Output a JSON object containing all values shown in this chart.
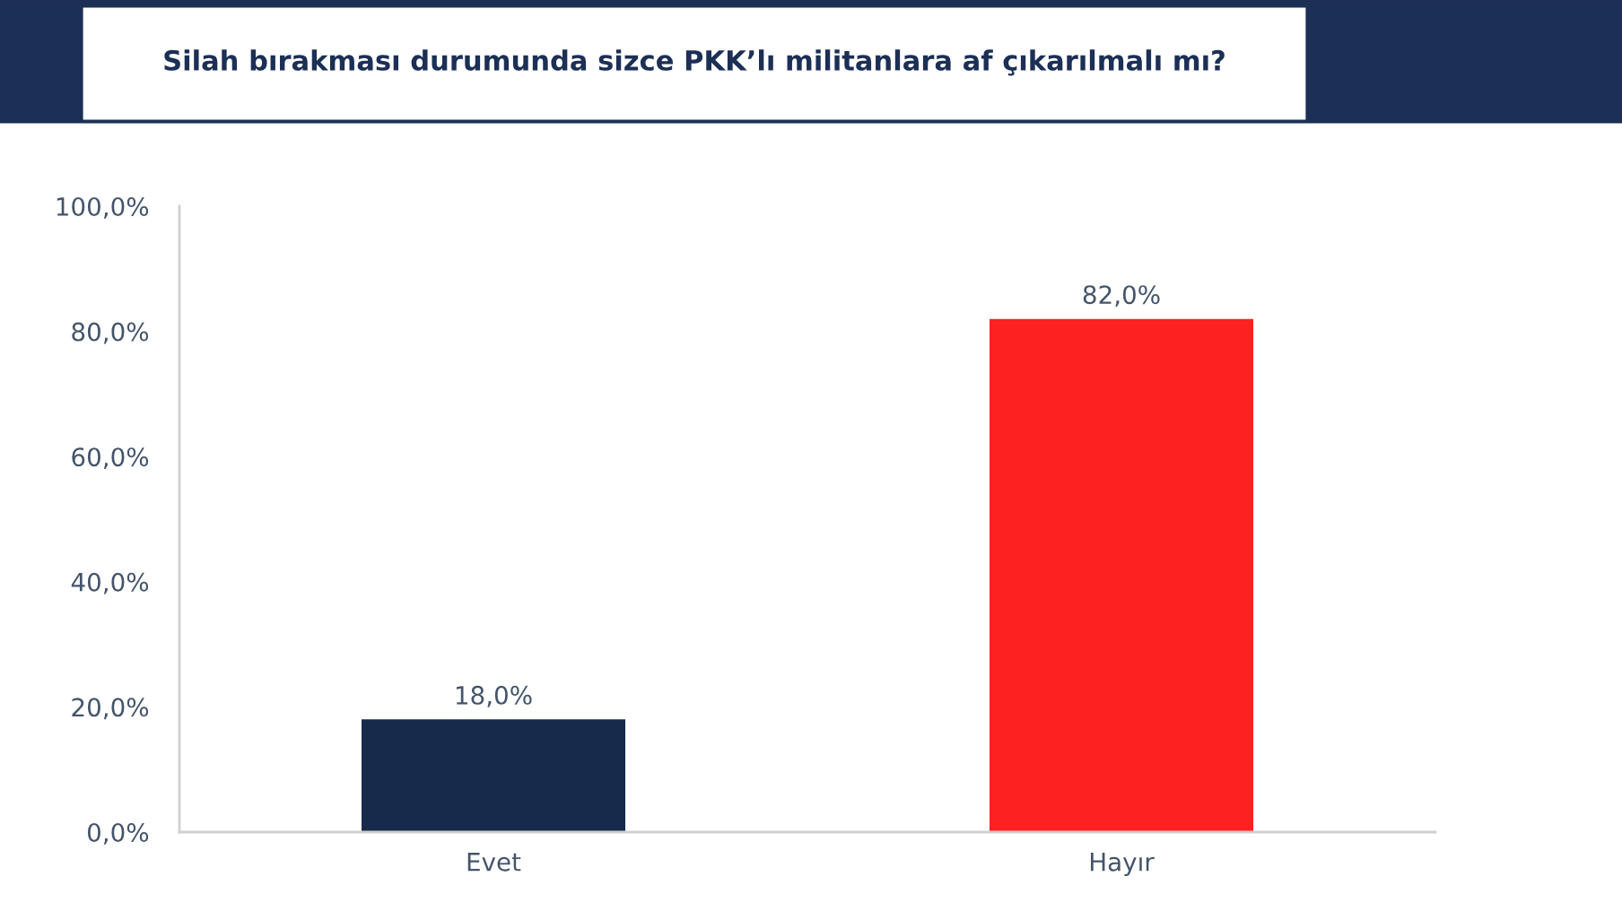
{
  "chart_data": {
    "type": "bar",
    "title": "Silah bırakması durumunda sizce PKK’lı militanlara af çıkarılmalı mı?",
    "categories": [
      "Evet",
      "Hayır"
    ],
    "values": [
      18.0,
      82.0
    ],
    "colors": [
      "#172a4b",
      "#fe2121"
    ],
    "value_labels": [
      "18,0%",
      "82,0%"
    ],
    "ylim": [
      0,
      100
    ],
    "yticks": [
      {
        "value": 0,
        "label": "0,0%"
      },
      {
        "value": 20,
        "label": "20,0%"
      },
      {
        "value": 40,
        "label": "40,0%"
      },
      {
        "value": 60,
        "label": "60,0%"
      },
      {
        "value": 80,
        "label": "80,0%"
      },
      {
        "value": 100,
        "label": "100,0%"
      }
    ]
  }
}
